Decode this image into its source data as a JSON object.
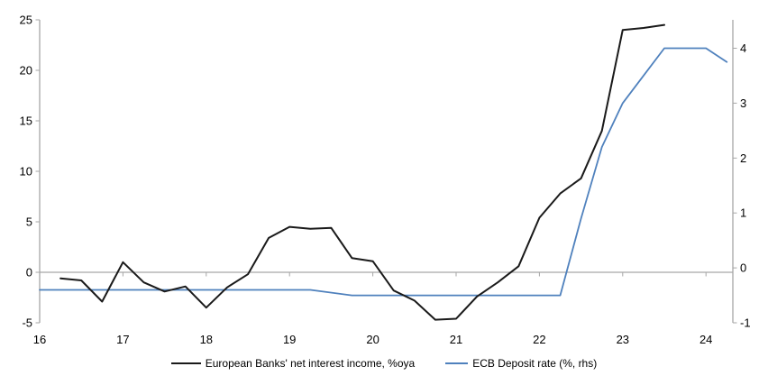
{
  "chart_data": {
    "type": "line",
    "title": "",
    "x_axis": {
      "ticks": [
        16,
        17,
        18,
        19,
        20,
        21,
        22,
        23,
        24
      ],
      "range": [
        16,
        24.32
      ],
      "labels_position": "low"
    },
    "y_axis_left": {
      "ticks": [
        25,
        20,
        15,
        10,
        5,
        0,
        -5
      ],
      "range": [
        -5,
        25
      ]
    },
    "y_axis_right": {
      "ticks": [
        4,
        3,
        2,
        1,
        0,
        -1
      ],
      "range": [
        -1,
        4.5
      ]
    },
    "grid": "zero-line-only",
    "legend_position": "bottom-center",
    "series": [
      {
        "name": "European Banks' net interest income, %oya",
        "axis": "left",
        "color": "#1a1a1a",
        "width": 2,
        "points": [
          [
            16.25,
            -0.6
          ],
          [
            16.5,
            -0.8
          ],
          [
            16.75,
            -2.9
          ],
          [
            17.0,
            1.0
          ],
          [
            17.25,
            -1.0
          ],
          [
            17.5,
            -1.9
          ],
          [
            17.75,
            -1.4
          ],
          [
            18.0,
            -3.5
          ],
          [
            18.25,
            -1.5
          ],
          [
            18.5,
            -0.2
          ],
          [
            18.75,
            3.4
          ],
          [
            19.0,
            4.5
          ],
          [
            19.25,
            4.3
          ],
          [
            19.5,
            4.4
          ],
          [
            19.75,
            1.4
          ],
          [
            20.0,
            1.1
          ],
          [
            20.25,
            -1.8
          ],
          [
            20.5,
            -2.8
          ],
          [
            20.75,
            -4.7
          ],
          [
            21.0,
            -4.6
          ],
          [
            21.25,
            -2.4
          ],
          [
            21.5,
            -1.0
          ],
          [
            21.75,
            0.6
          ],
          [
            22.0,
            5.4
          ],
          [
            22.25,
            7.8
          ],
          [
            22.5,
            9.3
          ],
          [
            22.75,
            14.0
          ],
          [
            23.0,
            24.0
          ],
          [
            23.25,
            24.2
          ],
          [
            23.5,
            24.5
          ]
        ]
      },
      {
        "name": "ECB Deposit rate (%, rhs)",
        "axis": "right",
        "color": "#4f81bd",
        "width": 1.8,
        "points": [
          [
            16.0,
            -0.4
          ],
          [
            19.25,
            -0.4
          ],
          [
            19.75,
            -0.5
          ],
          [
            22.25,
            -0.5
          ],
          [
            22.5,
            0.9
          ],
          [
            22.75,
            2.2
          ],
          [
            23.0,
            3.0
          ],
          [
            23.25,
            3.5
          ],
          [
            23.5,
            4.0
          ],
          [
            24.0,
            4.0
          ],
          [
            24.25,
            3.75
          ]
        ]
      }
    ]
  },
  "colors": {
    "axis": "#a6a6a6",
    "text": "#000000",
    "background": "#ffffff",
    "series_nii": "#1a1a1a",
    "series_deposit": "#4f81bd"
  }
}
